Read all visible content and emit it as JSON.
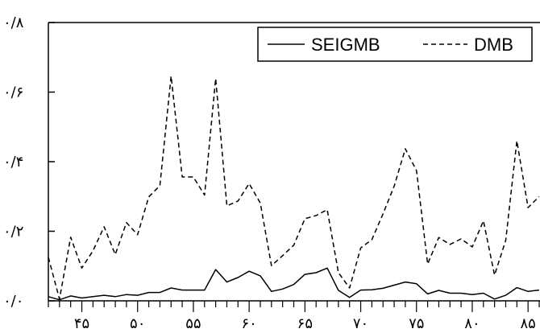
{
  "chart_data": {
    "type": "line",
    "title": "",
    "xlabel": "",
    "ylabel": "",
    "x_start": 1342,
    "x_end": 1386,
    "xlim": [
      1342,
      1386
    ],
    "ylim": [
      0,
      0.8
    ],
    "y_ticks": [
      {
        "value": 0.0,
        "label": "۰/۰"
      },
      {
        "value": 0.2,
        "label": "۰/۲"
      },
      {
        "value": 0.4,
        "label": "۰/۴"
      },
      {
        "value": 0.6,
        "label": "۰/۶"
      },
      {
        "value": 0.8,
        "label": "۰/۸"
      }
    ],
    "x_ticks": [
      {
        "value": 1345,
        "label": "۴۵"
      },
      {
        "value": 1350,
        "label": "۵۰"
      },
      {
        "value": 1355,
        "label": "۵۵"
      },
      {
        "value": 1360,
        "label": "۶۰"
      },
      {
        "value": 1365,
        "label": "۶۵"
      },
      {
        "value": 1370,
        "label": "۷۰"
      },
      {
        "value": 1375,
        "label": "۷۵"
      },
      {
        "value": 1380,
        "label": "۸۰"
      },
      {
        "value": 1385,
        "label": "۸۵"
      }
    ],
    "legend_position": "top-right",
    "series": [
      {
        "name": "SEIGMB",
        "style": "solid",
        "color": "#000000",
        "values": [
          0.012,
          0.003,
          0.014,
          0.008,
          0.012,
          0.016,
          0.012,
          0.018,
          0.016,
          0.024,
          0.024,
          0.037,
          0.031,
          0.031,
          0.031,
          0.09,
          0.054,
          0.067,
          0.085,
          0.072,
          0.027,
          0.034,
          0.047,
          0.076,
          0.081,
          0.094,
          0.03,
          0.01,
          0.031,
          0.032,
          0.036,
          0.045,
          0.054,
          0.049,
          0.02,
          0.03,
          0.022,
          0.022,
          0.018,
          0.022,
          0.005,
          0.016,
          0.038,
          0.027,
          0.031
        ]
      },
      {
        "name": "DMB",
        "style": "dashed",
        "color": "#000000",
        "values": [
          0.125,
          0.005,
          0.183,
          0.094,
          0.144,
          0.213,
          0.133,
          0.225,
          0.19,
          0.299,
          0.331,
          0.646,
          0.356,
          0.356,
          0.304,
          0.639,
          0.273,
          0.287,
          0.337,
          0.281,
          0.101,
          0.13,
          0.16,
          0.236,
          0.245,
          0.262,
          0.081,
          0.037,
          0.152,
          0.176,
          0.25,
          0.33,
          0.437,
          0.374,
          0.106,
          0.182,
          0.162,
          0.178,
          0.155,
          0.23,
          0.074,
          0.174,
          0.46,
          0.268,
          0.3
        ]
      }
    ]
  }
}
